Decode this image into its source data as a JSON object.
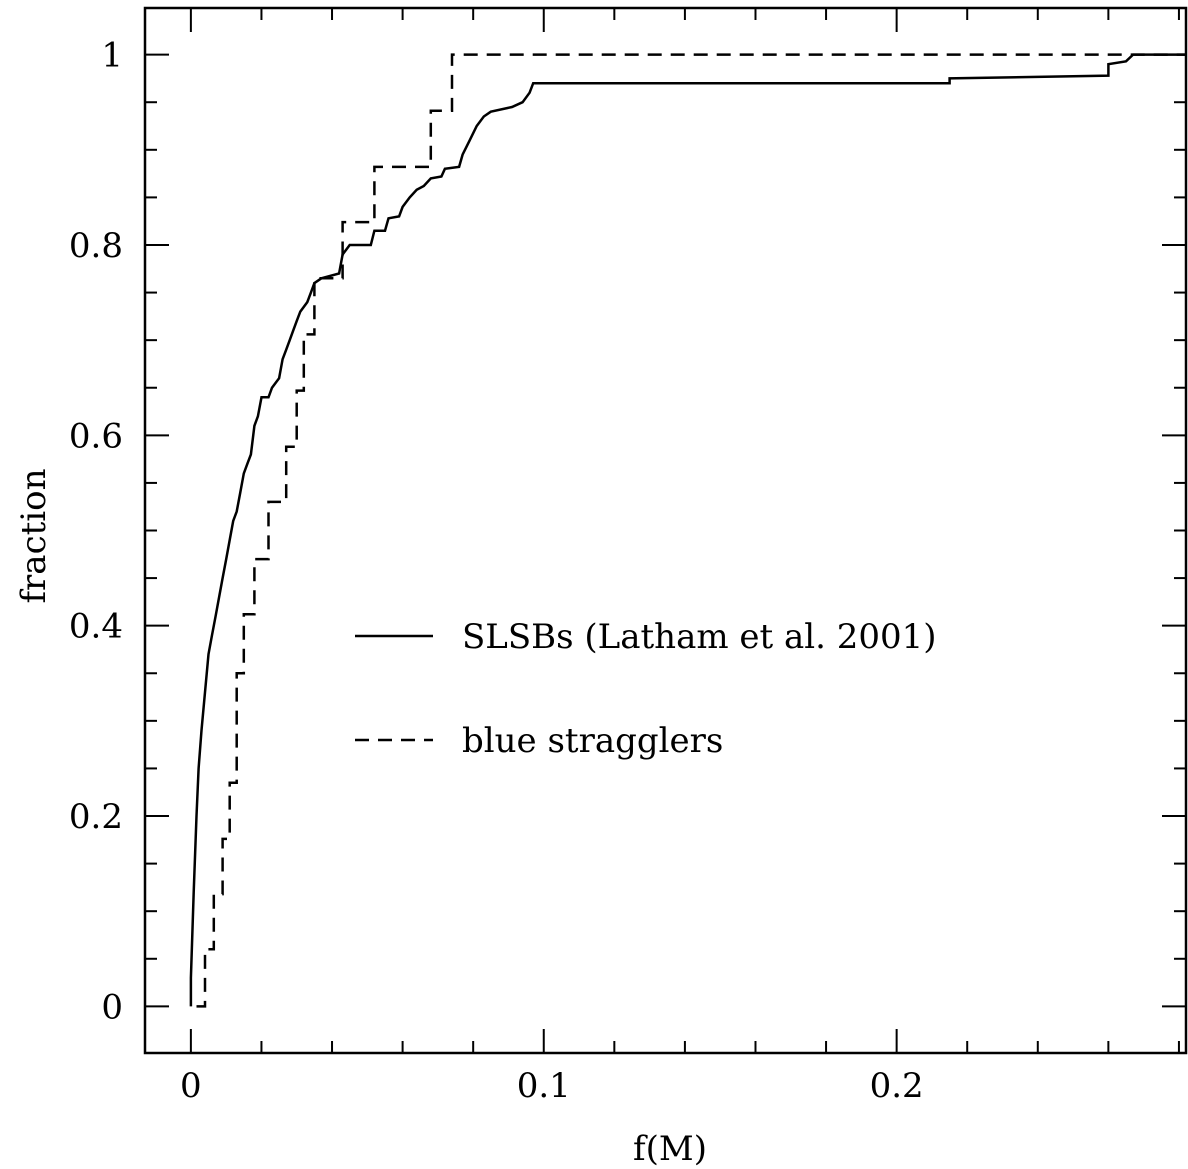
{
  "chart_data": {
    "type": "line",
    "title": "",
    "xlabel": "f(M)",
    "ylabel": "fraction",
    "xlim": [
      -0.013,
      0.282
    ],
    "ylim": [
      -0.049,
      1.049
    ],
    "grid": false,
    "legend_position": "center",
    "x_ticks": {
      "major": [
        0,
        0.1,
        0.2
      ],
      "major_labels": [
        "0",
        "0.1",
        "0.2"
      ],
      "minor_step": 0.02
    },
    "y_ticks": {
      "major": [
        0,
        0.2,
        0.4,
        0.6,
        0.8,
        1
      ],
      "major_labels": [
        "0",
        "0.2",
        "0.4",
        "0.6",
        "0.8",
        "1"
      ],
      "minor_step": 0.05
    },
    "series": [
      {
        "name": "SLSBs (Latham et al. 2001)",
        "style": "solid",
        "color": "#000000",
        "points": [
          [
            0.0,
            0.0
          ],
          [
            0.0,
            0.03
          ],
          [
            0.0008,
            0.12
          ],
          [
            0.0016,
            0.2
          ],
          [
            0.0022,
            0.25
          ],
          [
            0.003,
            0.29
          ],
          [
            0.004,
            0.33
          ],
          [
            0.005,
            0.37
          ],
          [
            0.006,
            0.39
          ],
          [
            0.007,
            0.41
          ],
          [
            0.008,
            0.43
          ],
          [
            0.009,
            0.45
          ],
          [
            0.01,
            0.47
          ],
          [
            0.011,
            0.49
          ],
          [
            0.012,
            0.51
          ],
          [
            0.013,
            0.52
          ],
          [
            0.014,
            0.54
          ],
          [
            0.015,
            0.56
          ],
          [
            0.016,
            0.57
          ],
          [
            0.017,
            0.58
          ],
          [
            0.018,
            0.61
          ],
          [
            0.019,
            0.62
          ],
          [
            0.02,
            0.64
          ],
          [
            0.022,
            0.64
          ],
          [
            0.023,
            0.65
          ],
          [
            0.025,
            0.66
          ],
          [
            0.026,
            0.68
          ],
          [
            0.027,
            0.69
          ],
          [
            0.028,
            0.7
          ],
          [
            0.029,
            0.71
          ],
          [
            0.03,
            0.72
          ],
          [
            0.031,
            0.73
          ],
          [
            0.033,
            0.74
          ],
          [
            0.034,
            0.75
          ],
          [
            0.035,
            0.76
          ],
          [
            0.037,
            0.765
          ],
          [
            0.042,
            0.77
          ],
          [
            0.043,
            0.79
          ],
          [
            0.045,
            0.8
          ],
          [
            0.051,
            0.8
          ],
          [
            0.052,
            0.815
          ],
          [
            0.055,
            0.815
          ],
          [
            0.056,
            0.828
          ],
          [
            0.059,
            0.83
          ],
          [
            0.06,
            0.84
          ],
          [
            0.062,
            0.85
          ],
          [
            0.064,
            0.858
          ],
          [
            0.066,
            0.862
          ],
          [
            0.068,
            0.87
          ],
          [
            0.071,
            0.872
          ],
          [
            0.072,
            0.88
          ],
          [
            0.076,
            0.882
          ],
          [
            0.077,
            0.895
          ],
          [
            0.079,
            0.91
          ],
          [
            0.081,
            0.925
          ],
          [
            0.083,
            0.935
          ],
          [
            0.085,
            0.94
          ],
          [
            0.091,
            0.945
          ],
          [
            0.094,
            0.95
          ],
          [
            0.096,
            0.96
          ],
          [
            0.097,
            0.97
          ],
          [
            0.215,
            0.97
          ],
          [
            0.215,
            0.975
          ],
          [
            0.26,
            0.978
          ],
          [
            0.26,
            0.99
          ],
          [
            0.265,
            0.993
          ],
          [
            0.267,
            1.0
          ],
          [
            0.282,
            1.0
          ]
        ]
      },
      {
        "name": "blue stragglers",
        "style": "dashed",
        "color": "#000000",
        "points": [
          [
            0.0016,
            0.0
          ],
          [
            0.004,
            0.0
          ],
          [
            0.004,
            0.06
          ],
          [
            0.0065,
            0.06
          ],
          [
            0.0065,
            0.118
          ],
          [
            0.009,
            0.118
          ],
          [
            0.009,
            0.176
          ],
          [
            0.011,
            0.176
          ],
          [
            0.011,
            0.235
          ],
          [
            0.013,
            0.235
          ],
          [
            0.013,
            0.35
          ],
          [
            0.015,
            0.35
          ],
          [
            0.015,
            0.412
          ],
          [
            0.018,
            0.412
          ],
          [
            0.018,
            0.47
          ],
          [
            0.022,
            0.47
          ],
          [
            0.022,
            0.53
          ],
          [
            0.027,
            0.53
          ],
          [
            0.027,
            0.588
          ],
          [
            0.03,
            0.588
          ],
          [
            0.03,
            0.647
          ],
          [
            0.032,
            0.647
          ],
          [
            0.032,
            0.706
          ],
          [
            0.035,
            0.706
          ],
          [
            0.035,
            0.765
          ],
          [
            0.043,
            0.765
          ],
          [
            0.043,
            0.824
          ],
          [
            0.052,
            0.824
          ],
          [
            0.052,
            0.882
          ],
          [
            0.068,
            0.882
          ],
          [
            0.068,
            0.941
          ],
          [
            0.074,
            0.941
          ],
          [
            0.074,
            1.0
          ],
          [
            0.282,
            1.0
          ]
        ]
      }
    ]
  }
}
